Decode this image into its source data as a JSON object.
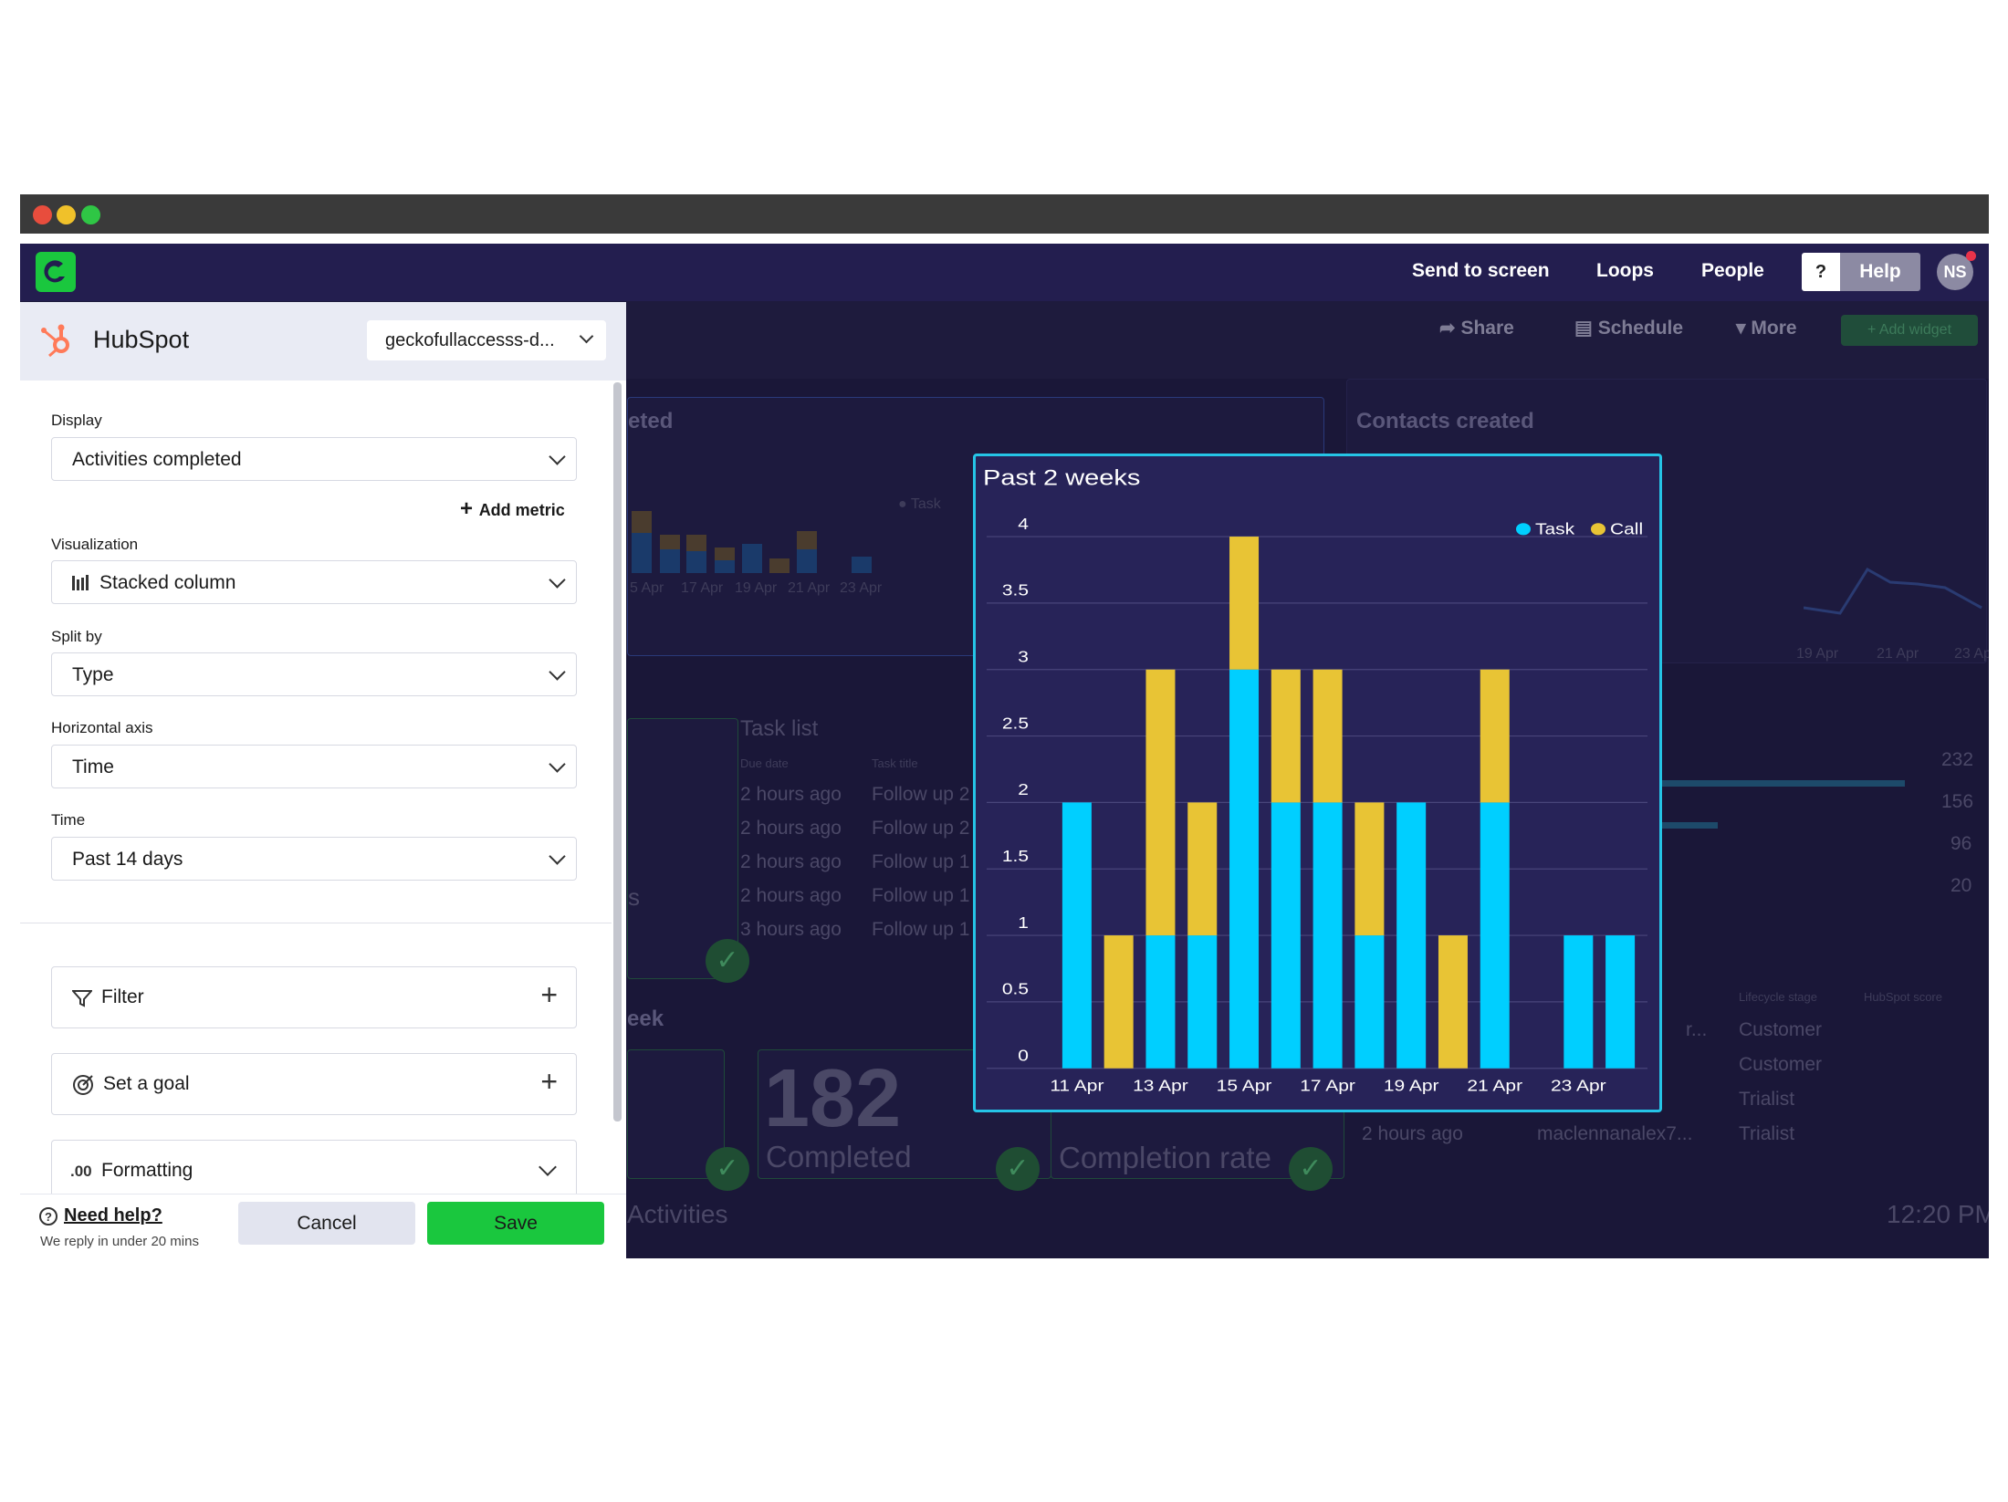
{
  "app": {
    "nav": {
      "send_to_screen": "Send to screen",
      "loops": "Loops",
      "people": "People",
      "question": "?",
      "help": "Help",
      "avatar": "NS"
    },
    "toolbar": {
      "share": "Share",
      "schedule": "Schedule",
      "more": "More",
      "add_widget": "Add widget"
    }
  },
  "background": {
    "completed_title": "eted",
    "completed_legend": "Task",
    "completed_axis": [
      "5 Apr",
      "17 Apr",
      "19 Apr",
      "21 Apr",
      "23 Apr"
    ],
    "contacts_title": "Contacts created",
    "contacts_axis": [
      "19 Apr",
      "21 Apr",
      "23 Apr"
    ],
    "task_list": {
      "title": "Task list",
      "col_due": "Due date",
      "col_title": "Task title",
      "rows": [
        {
          "due": "2 hours ago",
          "title": "Follow up 2"
        },
        {
          "due": "2 hours ago",
          "title": "Follow up 2"
        },
        {
          "due": "2 hours ago",
          "title": "Follow up 1"
        },
        {
          "due": "2 hours ago",
          "title": "Follow up 1"
        },
        {
          "due": "3 hours ago",
          "title": "Follow up 1"
        }
      ]
    },
    "side_values": [
      "232",
      "156",
      "96",
      "20"
    ],
    "lifecycle": {
      "col_stage": "Lifecycle stage",
      "col_score": "HubSpot score",
      "rows": [
        "Customer",
        "Customer",
        "Trialist",
        "Trialist"
      ],
      "last_row_time": "2 hours ago",
      "last_row_email": "maclennanalex7..."
    },
    "week_label": "eek",
    "big_number": "182",
    "big_number_label": "Completed",
    "completion_rate": "Completion rate",
    "activities": "Activities",
    "clock": "12:20 PM",
    "s_letter": "s",
    "ellipsis": "r..."
  },
  "panel": {
    "title": "HubSpot",
    "account": "geckofullaccesss-d...",
    "display_label": "Display",
    "display_value": "Activities completed",
    "add_metric": "Add metric",
    "visualization_label": "Visualization",
    "visualization_value": "Stacked column",
    "split_label": "Split by",
    "split_value": "Type",
    "haxis_label": "Horizontal axis",
    "haxis_value": "Time",
    "time_label": "Time",
    "time_value": "Past 14 days",
    "filter": "Filter",
    "goal": "Set a goal",
    "formatting_icon": ".00",
    "formatting": "Formatting",
    "need_help": "Need help?",
    "reply": "We reply in under 20 mins",
    "cancel": "Cancel",
    "save": "Save"
  },
  "colors": {
    "task": "#00cfff",
    "call": "#e8c435",
    "save": "#1ac73e",
    "chart_border": "#25c4e6",
    "nav": "#231e4f"
  },
  "chart_data": {
    "type": "bar",
    "stacked": true,
    "title": "Past 2 weeks",
    "categories": [
      "11 Apr",
      "12 Apr",
      "13 Apr",
      "14 Apr",
      "15 Apr",
      "16 Apr",
      "17 Apr",
      "18 Apr",
      "19 Apr",
      "20 Apr",
      "21 Apr",
      "22 Apr",
      "23 Apr",
      "24 Apr"
    ],
    "x_tick_labels": [
      "11 Apr",
      "13 Apr",
      "15 Apr",
      "17 Apr",
      "19 Apr",
      "21 Apr",
      "23 Apr"
    ],
    "series": [
      {
        "name": "Task",
        "color": "#00cfff",
        "values": [
          2,
          0,
          1,
          1,
          3,
          2,
          2,
          1,
          2,
          0,
          2,
          0,
          1,
          1
        ]
      },
      {
        "name": "Call",
        "color": "#e8c435",
        "values": [
          0,
          1,
          2,
          1,
          1,
          1,
          1,
          1,
          0,
          1,
          1,
          0,
          0,
          0
        ]
      }
    ],
    "ylim": [
      0,
      4
    ],
    "yticks": [
      "0",
      "0.5",
      "1",
      "1.5",
      "2",
      "2.5",
      "3",
      "3.5",
      "4"
    ],
    "legend_position": "top-right",
    "grid": true
  }
}
